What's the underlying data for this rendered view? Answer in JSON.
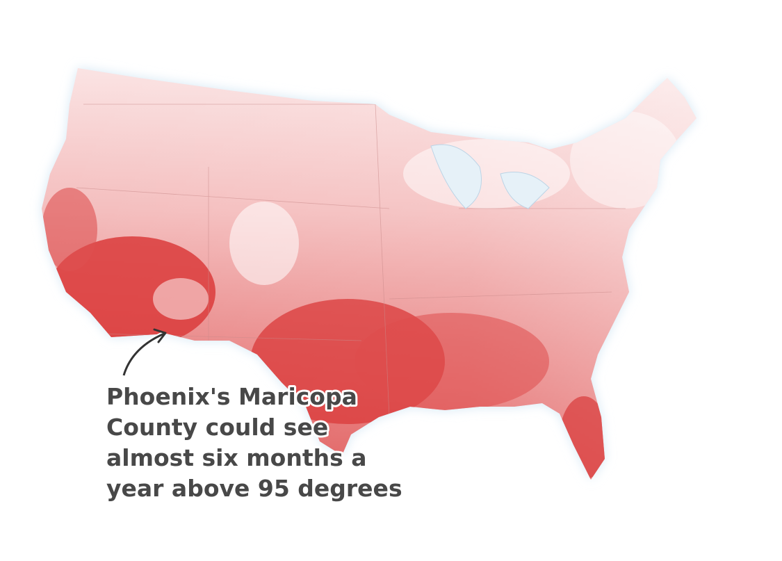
{
  "annotation": {
    "lines": [
      "Phoenix's Maricopa",
      "County could see",
      "almost six months a",
      "year above 95 degrees"
    ]
  }
}
